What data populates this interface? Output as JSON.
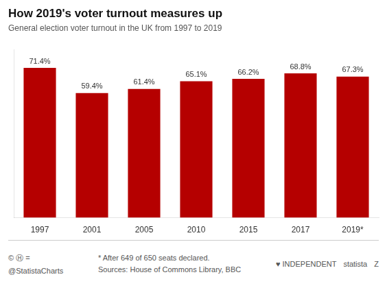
{
  "chart_data": {
    "type": "bar",
    "title": "How 2019's voter turnout measures up",
    "subtitle": "General election voter turnout in the UK from 1997 to 2019",
    "categories": [
      "1997",
      "2001",
      "2005",
      "2010",
      "2015",
      "2017",
      "2019*"
    ],
    "values": [
      71.4,
      59.4,
      61.4,
      65.1,
      66.2,
      68.8,
      67.3
    ],
    "value_labels": [
      "71.4%",
      "59.4%",
      "61.4%",
      "65.1%",
      "66.2%",
      "68.8%",
      "67.3%"
    ],
    "data_labels": true,
    "color": "#b50000",
    "ylim": [
      0,
      80
    ],
    "grid": false,
    "tick_labels": "x",
    "annotations": [
      "© Ⓗ =",
      "@StatistaCharts",
      "* After 649 of 650 seats declared.",
      "Sources: House of Commons Library, BBC",
      "♥ INDEPENDENT",
      "statista",
      "Z"
    ]
  }
}
